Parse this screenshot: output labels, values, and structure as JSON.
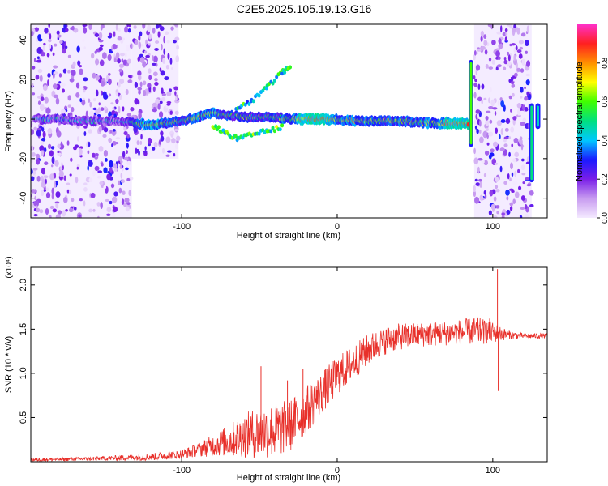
{
  "title": "C2E5.2025.105.19.13.G16",
  "chart_data": [
    {
      "type": "heatmap",
      "title": "C2E5.2025.105.19.13.G16",
      "xlabel": "Height of straight line (km)",
      "ylabel": "Frequency (Hz)",
      "xlim": [
        -197,
        135
      ],
      "ylim": [
        -50,
        48
      ],
      "x_ticks": [
        -100,
        0,
        100
      ],
      "x_tick_labels": [
        "-100",
        "0",
        "100"
      ],
      "y_ticks": [
        -40,
        -20,
        0,
        20,
        40
      ],
      "y_tick_labels": [
        "-40",
        "-20",
        "0",
        "20",
        "40"
      ],
      "colorbar": {
        "label": "Normalized spectral amplitude",
        "range": [
          0,
          1
        ],
        "ticks": [
          0.0,
          0.2,
          0.4,
          0.6,
          0.8
        ],
        "tick_labels": [
          "0.0",
          "0.2",
          "0.4",
          "0.6",
          "0.8"
        ],
        "colors": [
          "#f4eaff",
          "#c89cf0",
          "#7a1ee8",
          "#1a1aff",
          "#00c8ff",
          "#00e080",
          "#40ff00",
          "#ffff00",
          "#ff9000",
          "#ff2020",
          "#ff30c8"
        ]
      },
      "bands": [
        {
          "x": [
            -197,
            -132
          ],
          "y": [
            -50,
            48
          ],
          "kind": "noise",
          "intensity": 0.35
        },
        {
          "x": [
            -132,
            -102
          ],
          "y": [
            -20,
            48
          ],
          "kind": "noise",
          "intensity": 0.15
        },
        {
          "x": [
            88,
            125
          ],
          "y": [
            -50,
            48
          ],
          "kind": "noise",
          "intensity": 0.4
        }
      ],
      "ridge": [
        {
          "x": -195,
          "y": 0,
          "amp": 0.3
        },
        {
          "x": -180,
          "y": 0,
          "amp": 0.35
        },
        {
          "x": -160,
          "y": -1,
          "amp": 0.3
        },
        {
          "x": -140,
          "y": -1,
          "amp": 0.3
        },
        {
          "x": -130,
          "y": -2,
          "amp": 0.5
        },
        {
          "x": -120,
          "y": -3,
          "amp": 0.7
        },
        {
          "x": -110,
          "y": -2,
          "amp": 0.55
        },
        {
          "x": -100,
          "y": -1,
          "amp": 0.5
        },
        {
          "x": -90,
          "y": 1,
          "amp": 0.6
        },
        {
          "x": -80,
          "y": 3,
          "amp": 0.6
        },
        {
          "x": -70,
          "y": 2,
          "amp": 0.5
        },
        {
          "x": -60,
          "y": 1,
          "amp": 0.45
        },
        {
          "x": -50,
          "y": 1,
          "amp": 0.5
        },
        {
          "x": -40,
          "y": 1,
          "amp": 0.5
        },
        {
          "x": -30,
          "y": 0,
          "amp": 0.6
        },
        {
          "x": -20,
          "y": 0,
          "amp": 0.85
        },
        {
          "x": -10,
          "y": 0,
          "amp": 0.8
        },
        {
          "x": 0,
          "y": 0,
          "amp": 0.6
        },
        {
          "x": 10,
          "y": -1,
          "amp": 0.6
        },
        {
          "x": 20,
          "y": -1,
          "amp": 0.55
        },
        {
          "x": 40,
          "y": -1,
          "amp": 0.55
        },
        {
          "x": 60,
          "y": -2,
          "amp": 0.6
        },
        {
          "x": 75,
          "y": -2,
          "amp": 0.8
        },
        {
          "x": 84,
          "y": -2,
          "amp": 0.75
        }
      ],
      "branches": [
        {
          "points": [
            [
              -65,
              5
            ],
            [
              -55,
              9
            ],
            [
              -45,
              16
            ],
            [
              -35,
              24
            ],
            [
              -30,
              26
            ]
          ],
          "amp": 0.3
        },
        {
          "points": [
            [
              -80,
              -3
            ],
            [
              -72,
              -7
            ],
            [
              -64,
              -10
            ],
            [
              -55,
              -8
            ],
            [
              -45,
              -6
            ],
            [
              -35,
              -4
            ]
          ],
          "amp": 0.35
        }
      ],
      "spikes": [
        {
          "x": 86,
          "y": [
            -14,
            30
          ],
          "amp": 0.6
        },
        {
          "x": 125,
          "y": [
            -32,
            8
          ],
          "amp": 0.5
        },
        {
          "x": 129,
          "y": [
            -5,
            8
          ],
          "amp": 0.45
        }
      ]
    },
    {
      "type": "line",
      "xlabel": "Height of straight line (km)",
      "ylabel": "SNR (10 * v/v)",
      "y_multiplier": "(x10⁴)",
      "xlim": [
        -197,
        135
      ],
      "ylim": [
        0,
        2.2
      ],
      "x_ticks": [
        -100,
        0,
        100
      ],
      "x_tick_labels": [
        "-100",
        "0",
        "100"
      ],
      "y_ticks": [
        0.5,
        1.0,
        1.5,
        2.0
      ],
      "y_tick_labels": [
        "0.5",
        "1.0",
        "1.5",
        "2.0"
      ],
      "color": "#e8302a",
      "envelope": {
        "x": [
          -197,
          -160,
          -140,
          -120,
          -100,
          -90,
          -80,
          -70,
          -60,
          -50,
          -40,
          -30,
          -20,
          -10,
          0,
          10,
          20,
          30,
          40,
          50,
          60,
          70,
          80,
          90,
          100,
          110,
          120,
          135
        ],
        "base": [
          0.02,
          0.03,
          0.04,
          0.05,
          0.08,
          0.12,
          0.17,
          0.22,
          0.27,
          0.3,
          0.32,
          0.38,
          0.55,
          0.75,
          0.95,
          1.1,
          1.25,
          1.35,
          1.4,
          1.42,
          1.43,
          1.44,
          1.45,
          1.46,
          1.45,
          1.43,
          1.42,
          1.42
        ],
        "noise": [
          0.02,
          0.02,
          0.03,
          0.04,
          0.05,
          0.08,
          0.12,
          0.18,
          0.25,
          0.3,
          0.32,
          0.3,
          0.28,
          0.24,
          0.22,
          0.2,
          0.18,
          0.16,
          0.15,
          0.14,
          0.14,
          0.14,
          0.15,
          0.16,
          0.12,
          0.05,
          0.03,
          0.03
        ]
      },
      "peaks": [
        {
          "x": -49,
          "y": 1.08
        },
        {
          "x": -32,
          "y": 0.92
        },
        {
          "x": -22,
          "y": 1.05
        },
        {
          "x": 103,
          "y": 2.18
        },
        {
          "x": 103.5,
          "y": 0.8
        },
        {
          "x": 98,
          "y": 1.62
        }
      ]
    }
  ]
}
